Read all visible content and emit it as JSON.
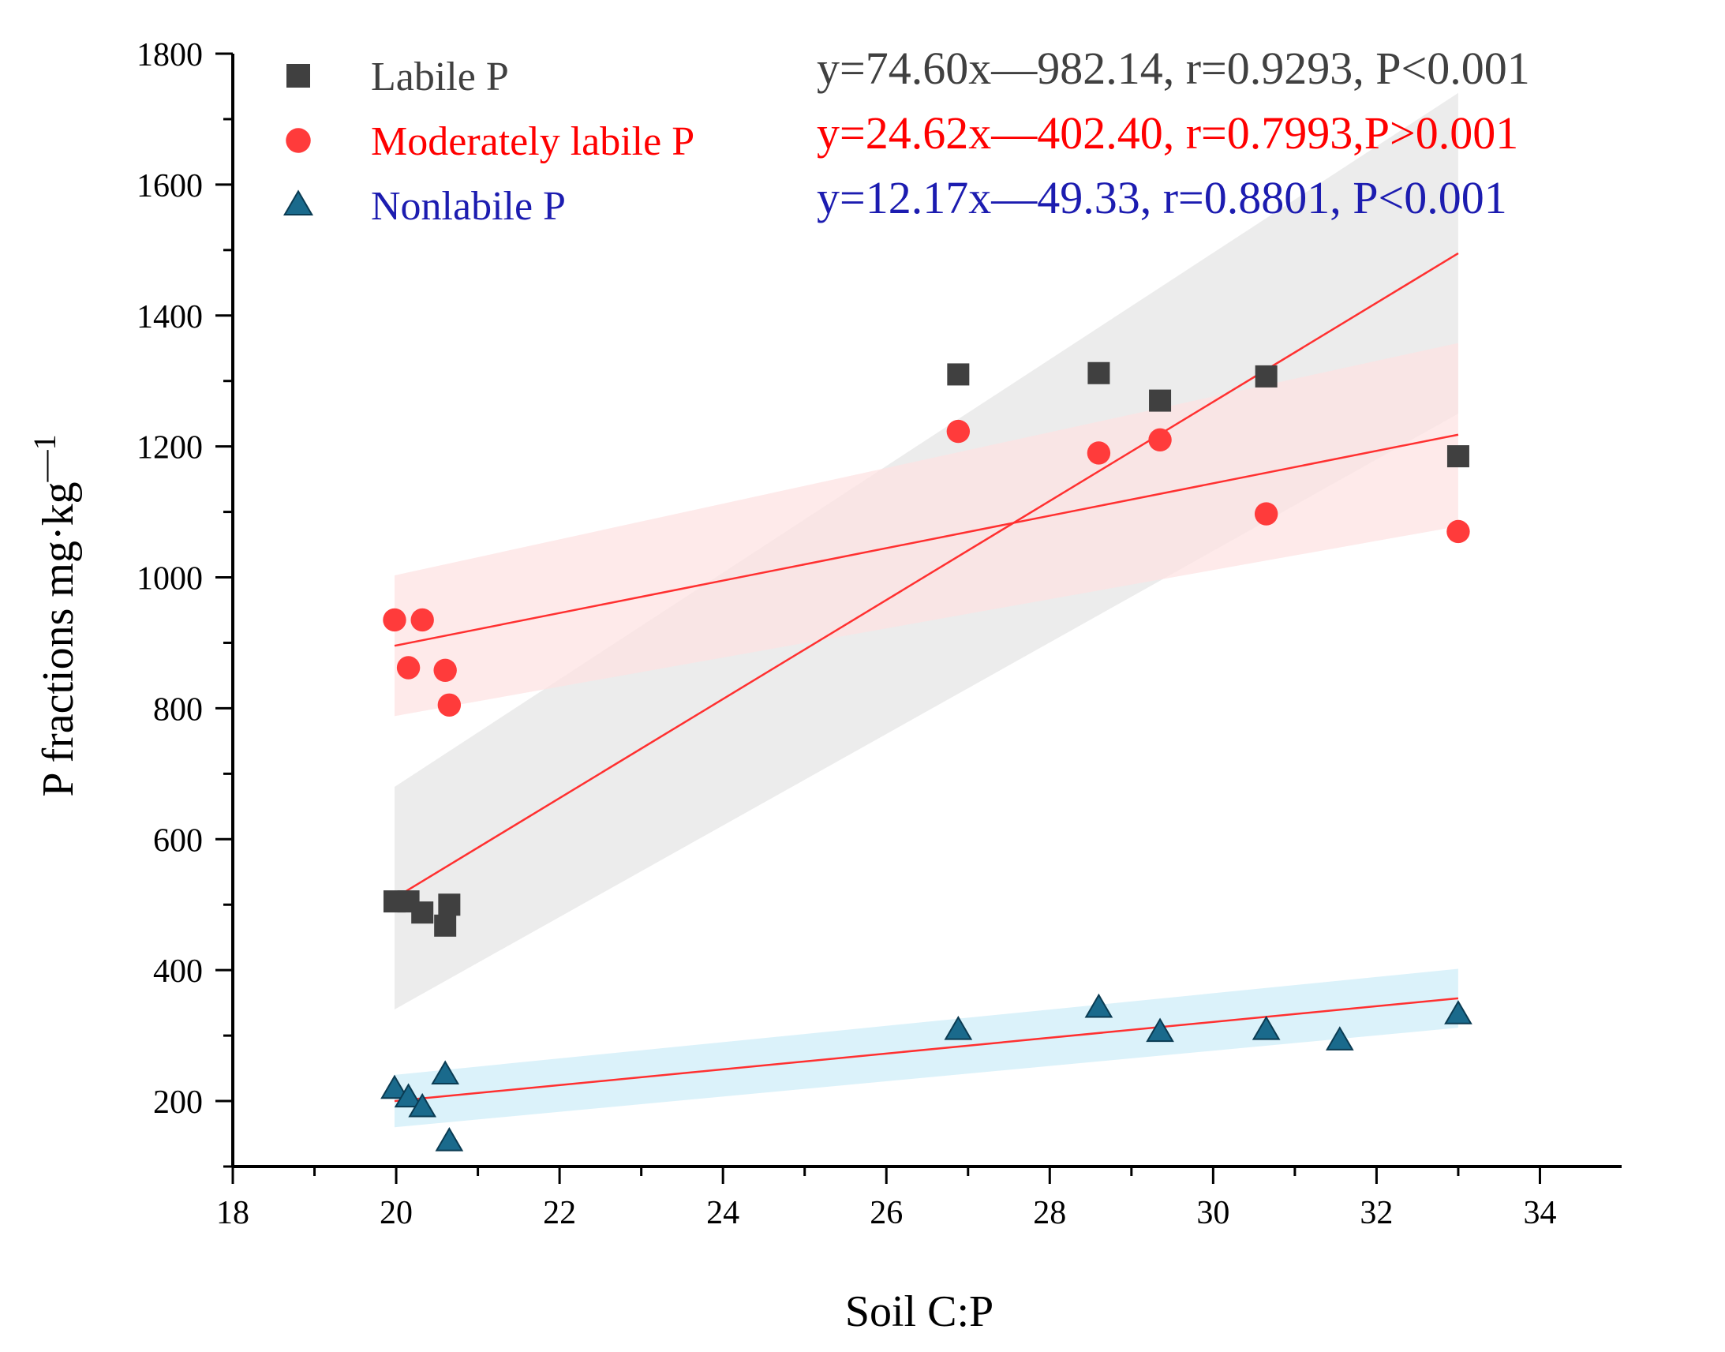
{
  "chart_data": {
    "type": "scatter",
    "xlabel": "Soil C:P",
    "ylabel_main": "P fractions mg·kg",
    "ylabel_sup": "—1",
    "xlim": [
      18,
      35
    ],
    "ylim": [
      100,
      1800
    ],
    "xticks": [
      18,
      20,
      22,
      24,
      26,
      28,
      30,
      32,
      34
    ],
    "yticks": [
      200,
      400,
      600,
      800,
      1000,
      1200,
      1400,
      1600,
      1800
    ],
    "grid": false,
    "legend_position": "top-left",
    "series": [
      {
        "name": "Labile P",
        "marker": "square",
        "color": "#404040",
        "equation": "y=74.60x—982.14, r=0.9293, P<0.001",
        "equation_color": "#404040",
        "fit": [
          19.98,
          33.0
        ],
        "band_color": "#e6e6e6",
        "band_upper": [
          680,
          1740
        ],
        "band_lower": [
          340,
          1250
        ],
        "points": [
          [
            19.98,
            505
          ],
          [
            20.15,
            505
          ],
          [
            20.32,
            488
          ],
          [
            20.6,
            468
          ],
          [
            20.65,
            500
          ],
          [
            26.88,
            1310
          ],
          [
            28.6,
            1312
          ],
          [
            29.35,
            1270
          ],
          [
            30.65,
            1307
          ],
          [
            33.0,
            1185
          ]
        ]
      },
      {
        "name": "Moderately labile P",
        "marker": "circle",
        "color": "#ff3b3b",
        "equation": "y=24.62x—402.40, r=0.7993,P>0.001",
        "equation_color": "#ff0000",
        "fit": [
          19.98,
          33.0
        ],
        "band_color": "#fde3e3",
        "band_upper": [
          1003,
          1358
        ],
        "band_lower": [
          788,
          1078
        ],
        "points": [
          [
            19.98,
            935
          ],
          [
            20.15,
            862
          ],
          [
            20.32,
            935
          ],
          [
            20.6,
            858
          ],
          [
            20.65,
            805
          ],
          [
            26.88,
            1223
          ],
          [
            28.6,
            1190
          ],
          [
            29.35,
            1210
          ],
          [
            30.65,
            1097
          ],
          [
            33.0,
            1070
          ]
        ]
      },
      {
        "name": "Nonlabile P",
        "marker": "triangle",
        "color": "#1a6a8c",
        "equation": "y=12.17x—49.33, r=0.8801, P<0.001",
        "equation_color": "#1c1cb0",
        "fit": [
          19.98,
          33.0
        ],
        "band_color": "#cfeef8",
        "band_upper": [
          240,
          402
        ],
        "band_lower": [
          160,
          312
        ],
        "points": [
          [
            19.98,
            218
          ],
          [
            20.15,
            205
          ],
          [
            20.32,
            190
          ],
          [
            20.6,
            240
          ],
          [
            20.65,
            138
          ],
          [
            26.88,
            308
          ],
          [
            28.6,
            342
          ],
          [
            29.35,
            305
          ],
          [
            30.65,
            308
          ],
          [
            31.55,
            292
          ],
          [
            33.0,
            332
          ]
        ]
      }
    ]
  }
}
